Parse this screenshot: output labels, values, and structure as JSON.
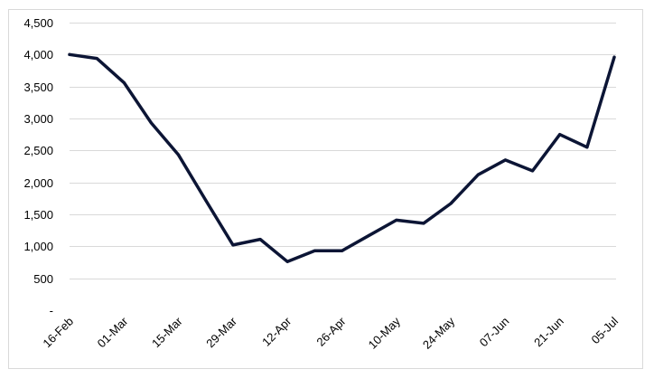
{
  "chart_data": {
    "type": "line",
    "title": "",
    "xlabel": "",
    "ylabel": "",
    "ylim": [
      0,
      4500
    ],
    "y_ticks": [
      {
        "value": 0,
        "label": "-"
      },
      {
        "value": 500,
        "label": "500"
      },
      {
        "value": 1000,
        "label": "1,000"
      },
      {
        "value": 1500,
        "label": "1,500"
      },
      {
        "value": 2000,
        "label": "2,000"
      },
      {
        "value": 2500,
        "label": "2,500"
      },
      {
        "value": 3000,
        "label": "3,000"
      },
      {
        "value": 3500,
        "label": "3,500"
      },
      {
        "value": 4000,
        "label": "4,000"
      },
      {
        "value": 4500,
        "label": "4,500"
      }
    ],
    "x_tick_labels": [
      "16-Feb",
      "01-Mar",
      "15-Mar",
      "29-Mar",
      "12-Apr",
      "26-Apr",
      "10-May",
      "24-May",
      "07-Jun",
      "21-Jun",
      "05-Jul"
    ],
    "x": [
      "16-Feb",
      "23-Feb",
      "01-Mar",
      "08-Mar",
      "15-Mar",
      "22-Mar",
      "29-Mar",
      "05-Apr",
      "12-Apr",
      "19-Apr",
      "26-Apr",
      "03-May",
      "10-May",
      "17-May",
      "24-May",
      "31-May",
      "07-Jun",
      "14-Jun",
      "21-Jun",
      "28-Jun",
      "05-Jul"
    ],
    "grid": true,
    "legend": "none",
    "series": [
      {
        "color": "#0c1535",
        "values": [
          4000,
          3940,
          3560,
          2930,
          2430,
          1720,
          1020,
          1110,
          760,
          930,
          930,
          1170,
          1410,
          1360,
          1670,
          2120,
          2350,
          2180,
          2750,
          2550,
          3960
        ]
      }
    ]
  }
}
